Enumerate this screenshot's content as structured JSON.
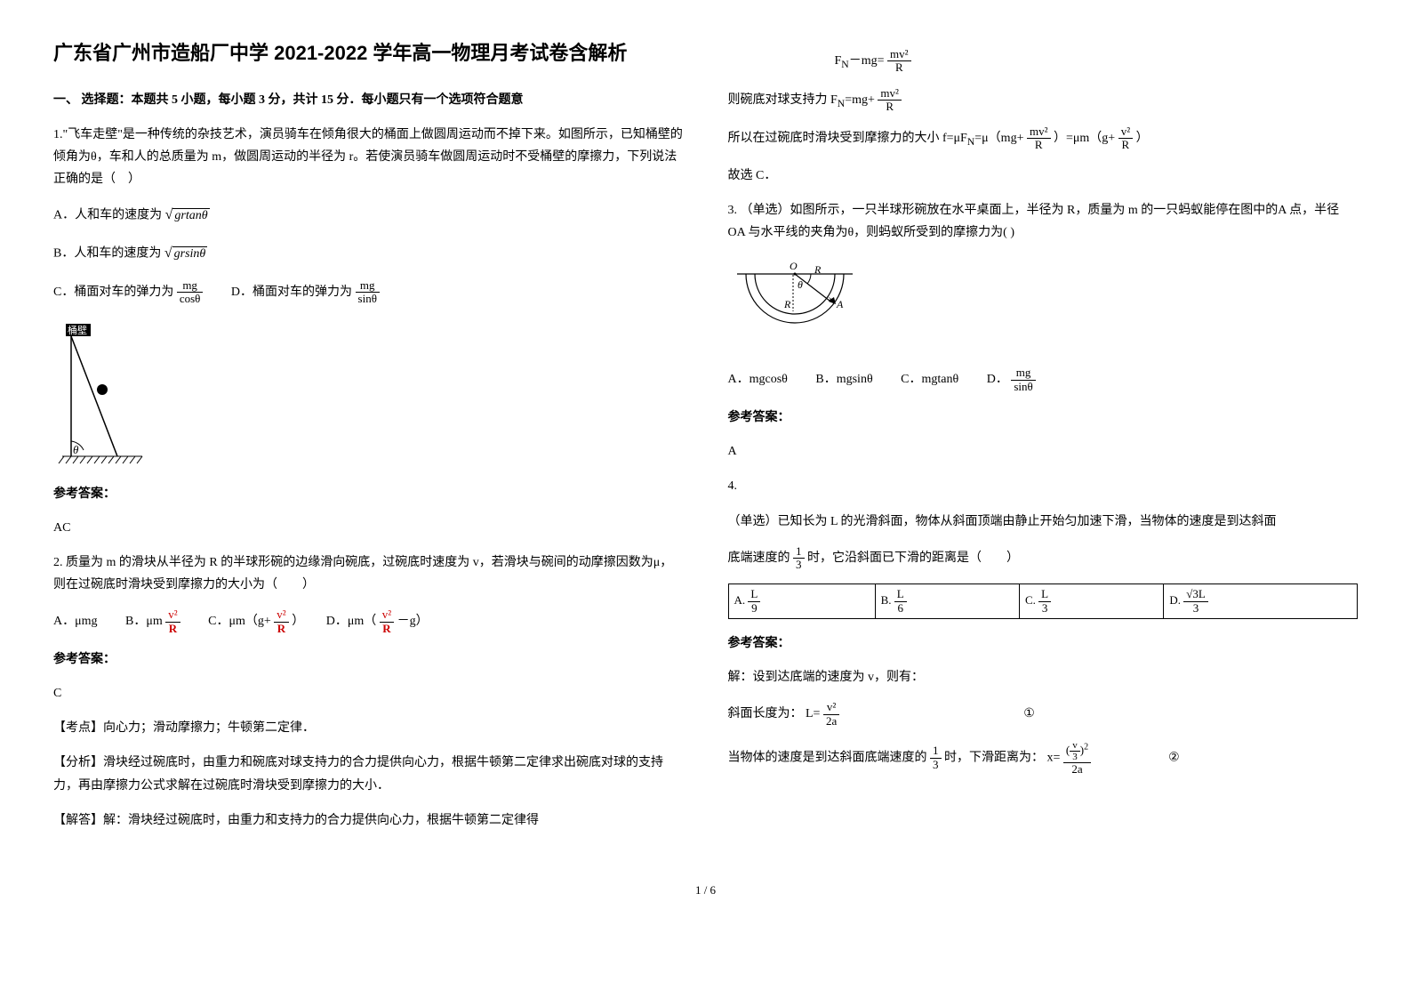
{
  "title": "广东省广州市造船厂中学 2021-2022 学年高一物理月考试卷含解析",
  "section1": "一、 选择题：本题共 5 小题，每小题 3 分，共计 15 分．每小题只有一个选项符合题意",
  "q1": {
    "stem": "1.\"飞车走壁\"是一种传统的杂技艺术，演员骑车在倾角很大的桶面上做圆周运动而不掉下来。如图所示，已知桶壁的倾角为θ，车和人的总质量为 m，做圆周运动的半径为 r。若使演员骑车做圆周运动时不受桶壁的摩擦力，下列说法正确的是（　）",
    "a_pre": "A．人和车的速度为",
    "a_expr": "grtanθ",
    "b_pre": "B．人和车的速度为",
    "b_expr": "grsinθ",
    "c_pre": "C．桶面对车的弹力为",
    "c_num": "mg",
    "c_den": "cosθ",
    "d_pre": "　　D．桶面对车的弹力为",
    "d_num": "mg",
    "d_den": "sinθ",
    "diag_label": "桶壁",
    "diag_theta": "θ",
    "ans_label": "参考答案：",
    "ans": "AC"
  },
  "q2": {
    "stem": "2. 质量为 m 的滑块从半径为 R 的半球形碗的边缘滑向碗底，过碗底时速度为 v，若滑块与碗间的动摩擦因数为μ，则在过碗底时滑块受到摩擦力的大小为（　　）",
    "a": "A．μmg",
    "b_pre": "B．μm",
    "c_pre": "C．μm（g+",
    "c_suf": "）",
    "d_pre": "D．μm（",
    "d_suf": "－g）",
    "frac_num": "v²",
    "frac_den": "R",
    "ans_label": "参考答案：",
    "ans": "C",
    "kpoint": "【考点】向心力；滑动摩擦力；牛顿第二定律．",
    "analysis": "【分析】滑块经过碗底时，由重力和碗底对球支持力的合力提供向心力，根据牛顿第二定律求出碗底对球的支持力，再由摩擦力公式求解在过碗底时滑块受到摩擦力的大小．",
    "solve_head": "【解答】解：滑块经过碗底时，由重力和支持力的合力提供向心力，根据牛顿第二定律得"
  },
  "right": {
    "eq1_left": "F",
    "eq1_sub": "N",
    "eq1_mid": "－mg=",
    "eq2_pre": "则碗底对球支持力 F",
    "eq2_mid": "=mg+",
    "eq3_pre": "所以在过碗底时滑块受到摩擦力的大小 f=μF",
    "eq3_mid": "=μ（mg+",
    "eq3_mid2": "）=μm（g+",
    "eq3_suf": "）",
    "conclude": "故选 C．",
    "frac_num": "v²",
    "frac_den": "R",
    "m": "m"
  },
  "q3": {
    "stem": "3. （单选）如图所示，一只半球形碗放在水平桌面上，半径为 R，质量为 m 的一只蚂蚁能停在图中的A 点，半径 OA 与水平线的夹角为θ，则蚂蚁所受到的摩擦力为(   )",
    "diag_O": "O",
    "diag_R": "R",
    "diag_theta": "θ",
    "diag_A": "A",
    "a": "A．mgcosθ",
    "b": "B．mgsinθ",
    "c": "C．mgtanθ",
    "d_pre": "D．",
    "d_num": "mg",
    "d_den": "sinθ",
    "ans_label": "参考答案：",
    "ans": "A"
  },
  "q4": {
    "num": "4.",
    "stem": "（单选）已知长为 L 的光滑斜面，物体从斜面顶端由静止开始匀加速下滑，当物体的速度是到达斜面",
    "stem2_pre": "底端速度的",
    "stem2_num": "1",
    "stem2_den": "3",
    "stem2_suf": "时，它沿斜面已下滑的距离是（　　）",
    "ta_l": "A.",
    "ta_num": "L",
    "ta_den": "9",
    "tb_l": "B.",
    "tb_num": "L",
    "tb_den": "6",
    "tc_l": "C.",
    "tc_num": "L",
    "tc_den": "3",
    "td_l": "D.",
    "td_num": "√3L",
    "td_den": "3",
    "ans_label": "参考答案：",
    "solve1": "解：设到达底端的速度为 v，则有：",
    "l_eq_pre": "斜面长度为：",
    "l_eq_num": "v²",
    "l_eq_den": "2a",
    "l_eq_lhs": "L=",
    "circ1": "①",
    "s2_pre": "当物体的速度是到达斜面底端速度的",
    "s2_num": "1",
    "s2_den": "3",
    "s2_mid": "时，下滑距离为：",
    "x_eq_lhs": "x=",
    "x_num_a": "(",
    "x_num_b": "v",
    "x_num_c": "3",
    "x_num_d": ")",
    "x_num_exp": "2",
    "x_den": "2a",
    "circ2": "②"
  },
  "pagenum": "1 / 6"
}
